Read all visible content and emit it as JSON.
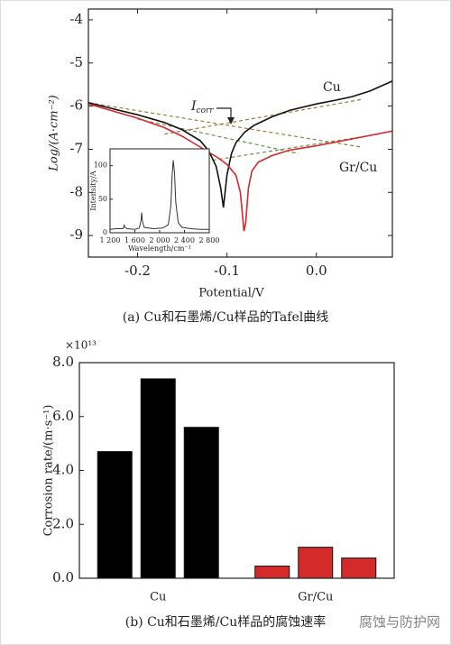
{
  "chart_data": [
    {
      "type": "line",
      "x_label": "Potential/V",
      "y_label": "Log/(A·cm⁻²)",
      "xlim": [
        -0.255,
        0.085
      ],
      "xticks": [
        -0.2,
        -0.1,
        {
          "value": 0,
          "label": "0.0"
        }
      ],
      "ylim": [
        -9.5,
        -3.75
      ],
      "yticks": [
        -4,
        -5,
        -6,
        -7,
        -8,
        -9
      ],
      "series": [
        {
          "name": "Cu",
          "color": "#111111",
          "x": [
            -0.255,
            -0.23,
            -0.2,
            -0.17,
            -0.15,
            -0.13,
            -0.12,
            -0.112,
            -0.107,
            -0.104,
            -0.1,
            -0.095,
            -0.09,
            -0.08,
            -0.07,
            -0.05,
            -0.03,
            0,
            0.02,
            0.04,
            0.06,
            0.085
          ],
          "values": [
            -5.92,
            -6.05,
            -6.2,
            -6.38,
            -6.55,
            -6.8,
            -7.05,
            -7.4,
            -7.9,
            -8.35,
            -7.6,
            -7.1,
            -6.85,
            -6.6,
            -6.45,
            -6.25,
            -6.1,
            -5.95,
            -5.87,
            -5.78,
            -5.65,
            -5.42
          ]
        },
        {
          "name": "Gr/Cu",
          "color": "#d42a2a",
          "x": [
            -0.255,
            -0.23,
            -0.2,
            -0.17,
            -0.15,
            -0.13,
            -0.11,
            -0.1,
            -0.09,
            -0.085,
            -0.081,
            -0.079,
            -0.076,
            -0.072,
            -0.065,
            -0.05,
            -0.03,
            0,
            0.03,
            0.06,
            0.085
          ],
          "values": [
            -5.95,
            -6.1,
            -6.28,
            -6.5,
            -6.7,
            -6.95,
            -7.2,
            -7.35,
            -7.6,
            -8.0,
            -8.9,
            -8.7,
            -7.9,
            -7.5,
            -7.3,
            -7.15,
            -7.02,
            -6.92,
            -6.8,
            -6.68,
            -6.58
          ]
        }
      ],
      "tangent_lines": [
        {
          "color": "#9a7a3a",
          "x": [
            -0.255,
            0.05
          ],
          "values": [
            -5.92,
            -6.95
          ]
        },
        {
          "color": "#9a7a3a",
          "x": [
            -0.17,
            0.05
          ],
          "values": [
            -6.65,
            -5.85
          ]
        },
        {
          "color": "#6b8f4a",
          "x": [
            -0.2,
            -0.02
          ],
          "values": [
            -6.3,
            -7.1
          ]
        },
        {
          "color": "#6b8f4a",
          "x": [
            -0.13,
            0.07
          ],
          "values": [
            -7.3,
            -6.65
          ]
        }
      ],
      "annotation": {
        "symbol": "I",
        "subscript": "corr"
      },
      "caption": "(a) Cu和石墨烯/Cu样品的Tafel曲线",
      "inset": {
        "x_label": "Wavelength/cm⁻¹",
        "y_label": "Intensity/A",
        "xlim": [
          1200,
          2800
        ],
        "xticks": [
          {
            "value": 1200,
            "label": "1 200"
          },
          {
            "value": 1600,
            "label": "1 600"
          },
          {
            "value": 2000,
            "label": "2 000"
          },
          {
            "value": 2400,
            "label": "2 400"
          },
          {
            "value": 2800,
            "label": "2 800"
          }
        ],
        "ylim": [
          0,
          125
        ],
        "yticks": [
          0,
          50,
          100
        ],
        "color": "#333333",
        "x": [
          1200,
          1300,
          1400,
          1420,
          1430,
          1440,
          1470,
          1600,
          1670,
          1700,
          1710,
          1720,
          1750,
          1900,
          2050,
          2140,
          2180,
          2200,
          2220,
          2240,
          2260,
          2300,
          2360,
          2500,
          2650,
          2800
        ],
        "values": [
          5,
          6,
          6,
          8,
          11,
          8,
          6,
          5,
          7,
          18,
          30,
          18,
          8,
          6,
          7,
          12,
          40,
          85,
          108,
          88,
          45,
          15,
          8,
          6,
          5,
          5
        ]
      }
    },
    {
      "type": "bar",
      "y_label": "Corrosion rate/(m·s⁻¹)",
      "multiplier": "×10¹³",
      "categories": [
        "Cu",
        "Gr/Cu"
      ],
      "values": [
        [
          4.7,
          7.4,
          5.6
        ],
        [
          0.45,
          1.15,
          0.75
        ]
      ],
      "colors": [
        "#000000",
        "#d42a2a"
      ],
      "ylim": [
        0,
        8
      ],
      "yticks": [
        {
          "value": 0,
          "label": "0.0"
        },
        {
          "value": 2,
          "label": "2.0"
        },
        {
          "value": 4,
          "label": "4.0"
        },
        {
          "value": 6,
          "label": "6.0"
        },
        {
          "value": 8,
          "label": "8.0"
        }
      ],
      "caption": "(b) Cu和石墨烯/Cu样品的腐蚀速率"
    }
  ],
  "watermark": "腐蚀与防护网"
}
